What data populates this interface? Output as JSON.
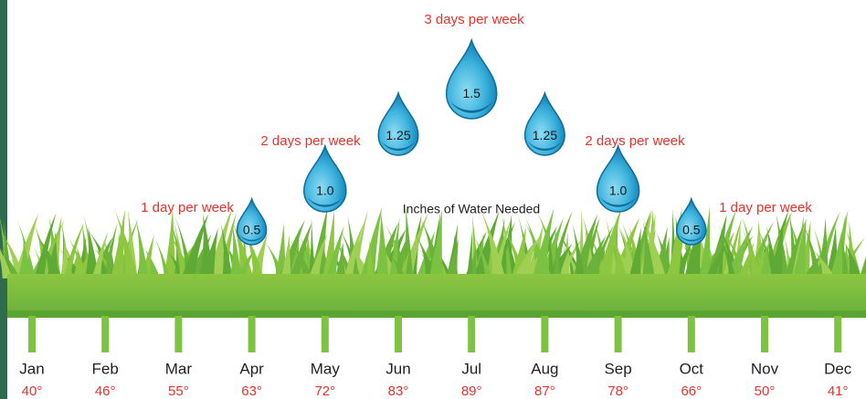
{
  "title": "Inches of Water Needed",
  "frequency_labels": [
    "1 day per week",
    "2 days per week",
    "3 days per week",
    "2 days per week",
    "1 day per week"
  ],
  "drops": [
    {
      "month": "Apr",
      "value": "0.5"
    },
    {
      "month": "May",
      "value": "1.0"
    },
    {
      "month": "Jun",
      "value": "1.25"
    },
    {
      "month": "Jul",
      "value": "1.5"
    },
    {
      "month": "Aug",
      "value": "1.25"
    },
    {
      "month": "Sep",
      "value": "1.0"
    },
    {
      "month": "Oct",
      "value": "0.5"
    }
  ],
  "months": [
    {
      "name": "Jan",
      "temp": "40°"
    },
    {
      "name": "Feb",
      "temp": "46°"
    },
    {
      "name": "Mar",
      "temp": "55°"
    },
    {
      "name": "Apr",
      "temp": "63°"
    },
    {
      "name": "May",
      "temp": "72°"
    },
    {
      "name": "Jun",
      "temp": "83°"
    },
    {
      "name": "Jul",
      "temp": "89°"
    },
    {
      "name": "Aug",
      "temp": "87°"
    },
    {
      "name": "Sep",
      "temp": "78°"
    },
    {
      "name": "Oct",
      "temp": "66°"
    },
    {
      "name": "Nov",
      "temp": "50°"
    },
    {
      "name": "Dec",
      "temp": "41°"
    }
  ]
}
